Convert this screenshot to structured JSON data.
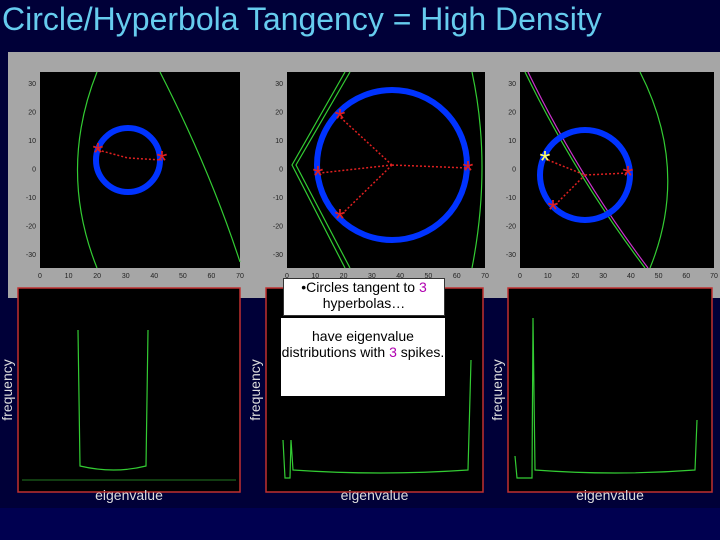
{
  "title": "Circle/Hyperbola Tangency = High Density",
  "top_plots": {
    "yticks": [
      "30",
      "20",
      "10",
      "0",
      "-10",
      "-20",
      "-30"
    ],
    "xticks": [
      "0",
      "10",
      "20",
      "30",
      "40",
      "50",
      "60",
      "70"
    ]
  },
  "callouts": [
    {
      "parts": [
        "•Circles tangent to ",
        "3",
        " hyperbolas…"
      ]
    },
    {
      "parts": [
        "have eigenvalue distributions with ",
        "3",
        " spikes."
      ]
    }
  ],
  "bottom_plots": [
    {
      "ylabel": "frequency",
      "xlabel": "eigenvalue"
    },
    {
      "ylabel": "frequency",
      "xlabel": "eigenvalue"
    },
    {
      "ylabel": "frequency",
      "xlabel": "eigenvalue"
    }
  ]
}
